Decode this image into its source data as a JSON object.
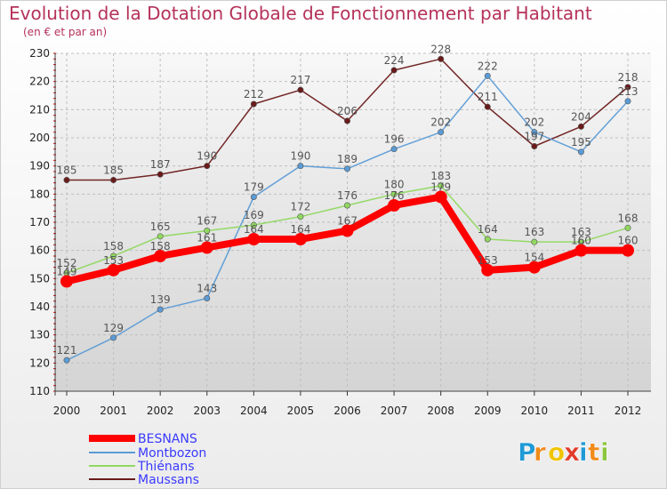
{
  "chart_data": {
    "type": "line",
    "title": "Evolution de la Dotation Globale de Fonctionnement par Habitant",
    "subtitle": "(en € et par an)",
    "x": [
      "2000",
      "2001",
      "2002",
      "2003",
      "2004",
      "2005",
      "2006",
      "2007",
      "2008",
      "2009",
      "2010",
      "2011",
      "2012"
    ],
    "ylim": [
      110,
      230
    ],
    "yticks": [
      110,
      120,
      130,
      140,
      150,
      160,
      170,
      180,
      190,
      200,
      210,
      220,
      230
    ],
    "grid": true,
    "legend_position": "bottom-left",
    "series": [
      {
        "name": "BESNANS",
        "color": "#ff0000",
        "values": [
          149,
          153,
          158,
          161,
          164,
          164,
          167,
          176,
          179,
          153,
          154,
          160,
          160
        ]
      },
      {
        "name": "Montbozon",
        "color": "#5b9bd5",
        "values": [
          121,
          129,
          139,
          143,
          179,
          190,
          189,
          196,
          202,
          222,
          202,
          195,
          213
        ]
      },
      {
        "name": "Thiénans",
        "color": "#90d860",
        "values": [
          152,
          158,
          165,
          167,
          169,
          172,
          176,
          180,
          183,
          164,
          163,
          163,
          168
        ]
      },
      {
        "name": "Maussans",
        "color": "#6b1a1a",
        "values": [
          185,
          185,
          187,
          190,
          212,
          217,
          206,
          224,
          228,
          211,
          197,
          204,
          218
        ]
      }
    ]
  },
  "brand": {
    "letters": [
      "P",
      "r",
      "o",
      "x",
      "i",
      "t",
      "i"
    ],
    "colors": [
      "#1f9ad6",
      "#f08a1a",
      "#f0c400",
      "#e23b2a",
      "#1f9ad6",
      "#f08a1a",
      "#8cc63f"
    ]
  },
  "colors": {
    "title": "#b5325a",
    "legend_text": "#3a3aff",
    "grid": "#bfbfbf"
  }
}
